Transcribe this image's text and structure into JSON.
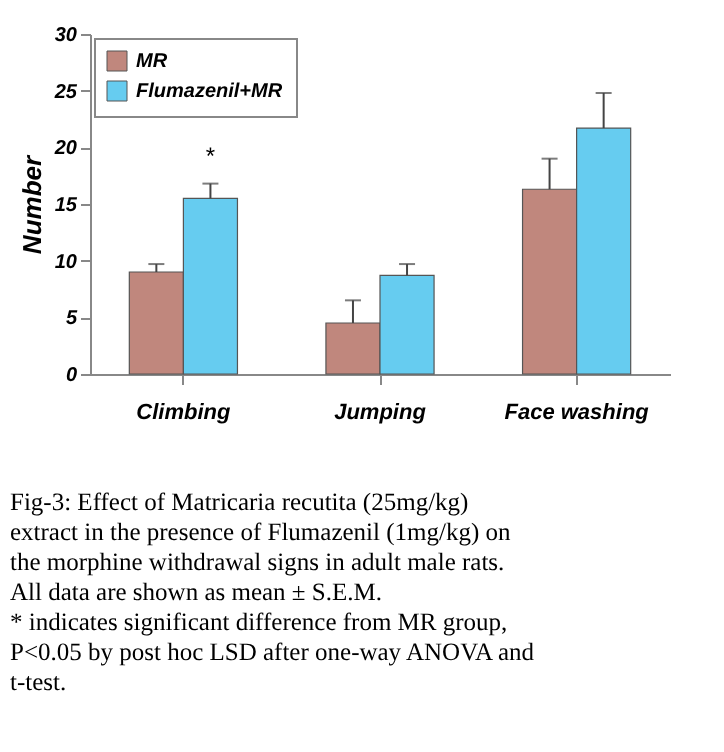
{
  "chart_data": {
    "type": "bar",
    "ylabel": "Number",
    "categories": [
      "Climbing",
      "Jumping",
      "Face washing"
    ],
    "series": [
      {
        "name": "MR",
        "color": "#c0877d",
        "values": [
          9,
          4.5,
          16.3
        ],
        "errors": [
          [
            9,
            9.7
          ],
          [
            4.5,
            6.5
          ],
          [
            16.3,
            19
          ]
        ]
      },
      {
        "name": "Flumazenil+MR",
        "color": "#66ccf0",
        "values": [
          15.5,
          8.7,
          21.7
        ],
        "errors": [
          [
            15.5,
            16.8
          ],
          [
            8.7,
            9.7
          ],
          [
            21.7,
            24.8
          ]
        ]
      }
    ],
    "ylim": [
      0,
      30
    ],
    "yticks": [
      0,
      5,
      10,
      15,
      20,
      25,
      30
    ],
    "grid": false,
    "legend": "top left",
    "annotations": [
      "*",
      "Fig-3: Effect of Matricaria recutita (25mg/kg) extract in the presence of Flumazenil (1mg/kg) on the morphine withdrawal signs in adult male rats. All data are shown as mean ± S.E.M.",
      "* indicates significant difference from MR group, P<0.05 by post hoc LSD after one-way ANOVA and t-test."
    ]
  }
}
